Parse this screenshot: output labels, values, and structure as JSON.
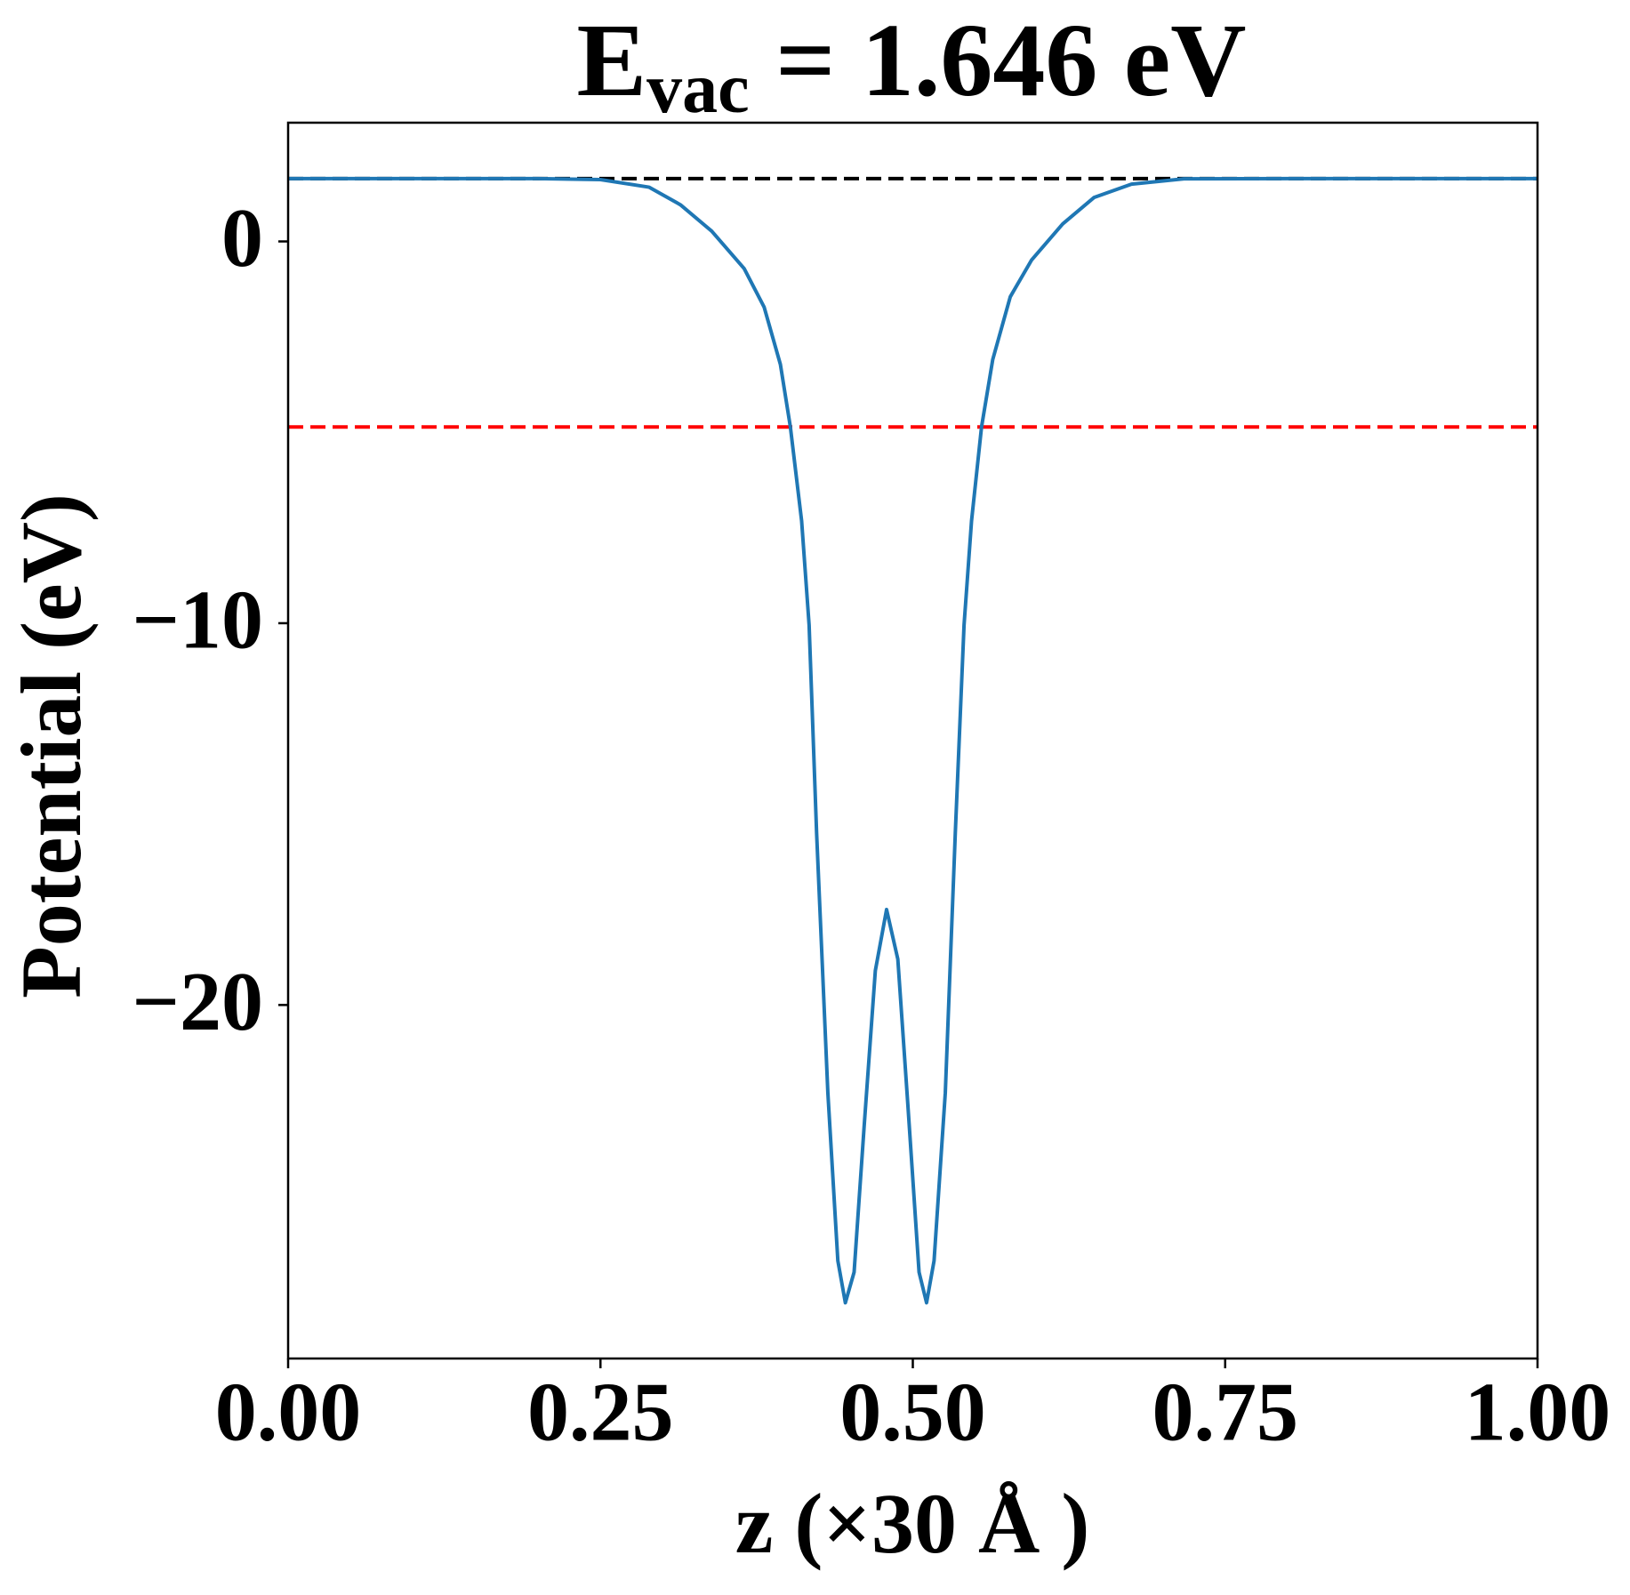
{
  "chart_data": {
    "type": "line",
    "title": {
      "main": "E",
      "sub": "vac",
      "rest": " = 1.646 eV"
    },
    "xlabel": "z (×30 Å )",
    "ylabel": "Potential (eV)",
    "x": [
      0,
      0.1,
      0.2,
      0.25,
      0.289,
      0.314,
      0.339,
      0.365,
      0.381,
      0.394,
      0.402,
      0.411,
      0.417,
      0.423,
      0.432,
      0.44,
      0.446,
      0.453,
      0.461,
      0.47,
      0.479,
      0.488,
      0.496,
      0.505,
      0.511,
      0.517,
      0.526,
      0.534,
      0.541,
      0.547,
      0.555,
      0.564,
      0.578,
      0.595,
      0.62,
      0.645,
      0.675,
      0.717,
      0.8,
      0.9,
      1.0
    ],
    "series": [
      {
        "color": "#1f77b4",
        "values": [
          1.646,
          1.646,
          1.646,
          1.62,
          1.42,
          0.96,
          0.27,
          -0.71,
          -1.72,
          -3.22,
          -4.86,
          -7.32,
          -10.05,
          -15.5,
          -22.3,
          -26.7,
          -27.8,
          -27.0,
          -23.2,
          -19.1,
          -17.5,
          -18.8,
          -22.6,
          -27.0,
          -27.8,
          -26.7,
          -22.3,
          -15.5,
          -10.05,
          -7.32,
          -4.86,
          -3.09,
          -1.45,
          -0.49,
          0.46,
          1.15,
          1.5,
          1.64,
          1.646,
          1.646,
          1.646
        ]
      }
    ],
    "hlines": [
      {
        "value": 1.646,
        "color": "#000000"
      },
      {
        "value": -4.86,
        "color": "#ff0000"
      }
    ],
    "xlim": [
      0,
      1
    ],
    "ylim": [
      -29.26,
      3.11
    ],
    "xticks": [
      {
        "value": 0,
        "label": "0.00"
      },
      {
        "value": 0.25,
        "label": "0.25"
      },
      {
        "value": 0.5,
        "label": "0.50"
      },
      {
        "value": 0.75,
        "label": "0.75"
      },
      {
        "value": 1,
        "label": "1.00"
      }
    ],
    "yticks": [
      {
        "value": -20,
        "label": "−20"
      },
      {
        "value": -10,
        "label": "−10"
      },
      0
    ]
  }
}
